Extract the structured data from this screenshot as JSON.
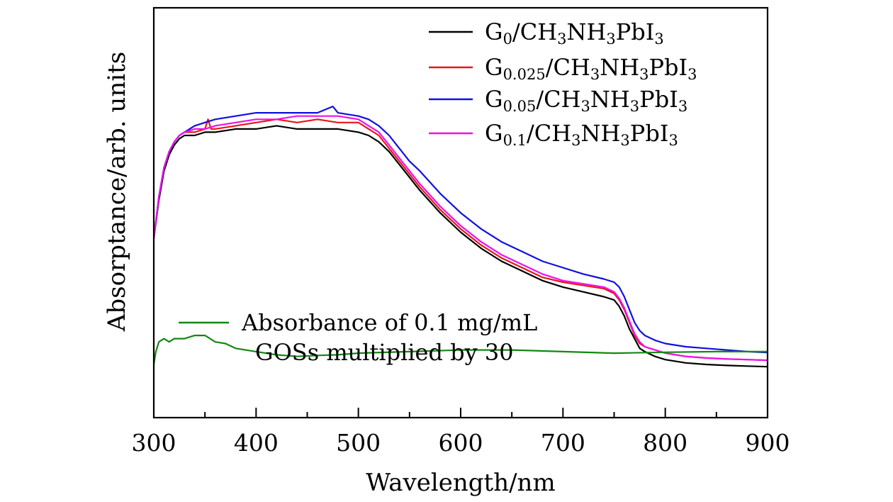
{
  "chart_data": {
    "type": "line",
    "xlabel": "Wavelength/nm",
    "ylabel": "Absorptance/arb. units",
    "xlim": [
      300,
      900
    ],
    "ylim": [
      0,
      1
    ],
    "x_ticks": [
      300,
      400,
      500,
      600,
      700,
      800,
      900
    ],
    "y_ticks_labeled": false,
    "grid": false,
    "legend_position": "top-right",
    "series": [
      {
        "name": "G0/CH3NH3PbI3",
        "label_parts": [
          "G",
          "0",
          "/CH",
          "3",
          "NH",
          "3",
          "PbI",
          "3"
        ],
        "color": "#000000",
        "x": [
          300,
          305,
          310,
          315,
          320,
          325,
          330,
          340,
          350,
          360,
          380,
          400,
          420,
          440,
          460,
          480,
          500,
          510,
          520,
          530,
          540,
          550,
          560,
          580,
          600,
          620,
          640,
          660,
          680,
          700,
          720,
          740,
          750,
          755,
          760,
          765,
          770,
          775,
          780,
          790,
          800,
          820,
          840,
          860,
          880,
          900
        ],
        "y": [
          0.48,
          0.6,
          0.69,
          0.74,
          0.77,
          0.79,
          0.8,
          0.8,
          0.81,
          0.81,
          0.82,
          0.82,
          0.83,
          0.82,
          0.82,
          0.82,
          0.81,
          0.8,
          0.78,
          0.75,
          0.71,
          0.67,
          0.63,
          0.56,
          0.5,
          0.45,
          0.41,
          0.38,
          0.35,
          0.33,
          0.315,
          0.3,
          0.29,
          0.27,
          0.24,
          0.2,
          0.17,
          0.14,
          0.13,
          0.115,
          0.105,
          0.095,
          0.09,
          0.087,
          0.085,
          0.083
        ]
      },
      {
        "name": "G0.025/CH3NH3PbI3",
        "label_parts": [
          "G",
          "0.025",
          "/CH",
          "3",
          "NH",
          "3",
          "PbI",
          "3"
        ],
        "color": "#e8161a",
        "x": [
          300,
          305,
          310,
          315,
          320,
          325,
          330,
          340,
          350,
          353,
          356,
          360,
          380,
          400,
          420,
          440,
          460,
          480,
          500,
          510,
          520,
          530,
          540,
          550,
          560,
          580,
          600,
          620,
          640,
          660,
          680,
          700,
          720,
          740,
          750,
          755,
          760,
          765,
          770,
          775,
          780,
          790,
          800,
          820,
          840,
          860,
          880,
          900
        ],
        "y": [
          0.48,
          0.61,
          0.7,
          0.75,
          0.78,
          0.8,
          0.81,
          0.81,
          0.82,
          0.85,
          0.82,
          0.82,
          0.83,
          0.84,
          0.85,
          0.84,
          0.85,
          0.84,
          0.84,
          0.82,
          0.8,
          0.76,
          0.72,
          0.68,
          0.64,
          0.57,
          0.51,
          0.46,
          0.42,
          0.39,
          0.36,
          0.345,
          0.335,
          0.325,
          0.31,
          0.29,
          0.26,
          0.22,
          0.18,
          0.155,
          0.145,
          0.135,
          0.125,
          0.115,
          0.11,
          0.107,
          0.105,
          0.103
        ]
      },
      {
        "name": "G0.05/CH3NH3PbI3",
        "label_parts": [
          "G",
          "0.05",
          "/CH",
          "3",
          "NH",
          "3",
          "PbI",
          "3"
        ],
        "color": "#1010e0",
        "x": [
          300,
          305,
          310,
          315,
          320,
          325,
          330,
          340,
          350,
          360,
          380,
          400,
          420,
          440,
          460,
          475,
          480,
          500,
          510,
          520,
          530,
          540,
          550,
          560,
          580,
          600,
          620,
          640,
          660,
          680,
          700,
          720,
          740,
          750,
          755,
          760,
          765,
          770,
          775,
          780,
          790,
          800,
          820,
          840,
          860,
          880,
          900
        ],
        "y": [
          0.48,
          0.61,
          0.7,
          0.75,
          0.78,
          0.8,
          0.81,
          0.83,
          0.84,
          0.85,
          0.86,
          0.87,
          0.87,
          0.87,
          0.87,
          0.89,
          0.87,
          0.86,
          0.85,
          0.83,
          0.8,
          0.76,
          0.72,
          0.69,
          0.62,
          0.56,
          0.51,
          0.47,
          0.44,
          0.41,
          0.39,
          0.37,
          0.355,
          0.345,
          0.33,
          0.3,
          0.26,
          0.22,
          0.195,
          0.18,
          0.165,
          0.155,
          0.145,
          0.14,
          0.135,
          0.13,
          0.127
        ]
      },
      {
        "name": "G0.1/CH3NH3PbI3",
        "label_parts": [
          "G",
          "0.1",
          "/CH",
          "3",
          "NH",
          "3",
          "PbI",
          "3"
        ],
        "color": "#ee10ee",
        "x": [
          300,
          305,
          310,
          315,
          320,
          325,
          330,
          340,
          350,
          360,
          380,
          400,
          420,
          440,
          460,
          480,
          500,
          510,
          520,
          530,
          540,
          550,
          560,
          580,
          600,
          620,
          640,
          660,
          680,
          700,
          720,
          740,
          750,
          755,
          760,
          765,
          770,
          775,
          780,
          790,
          800,
          820,
          840,
          860,
          880,
          900
        ],
        "y": [
          0.48,
          0.61,
          0.7,
          0.75,
          0.78,
          0.8,
          0.81,
          0.82,
          0.82,
          0.83,
          0.84,
          0.85,
          0.85,
          0.86,
          0.86,
          0.86,
          0.85,
          0.83,
          0.81,
          0.77,
          0.73,
          0.69,
          0.65,
          0.58,
          0.52,
          0.47,
          0.43,
          0.4,
          0.37,
          0.35,
          0.34,
          0.33,
          0.315,
          0.295,
          0.265,
          0.225,
          0.185,
          0.16,
          0.145,
          0.135,
          0.125,
          0.115,
          0.11,
          0.107,
          0.105,
          0.103
        ]
      },
      {
        "name": "Absorbance of 0.1 mg/mL GOSs multiplied by 30",
        "annotation_lines": [
          "Absorbance of 0.1 mg/mL",
          "GOSs multiplied by 30"
        ],
        "color": "#138813",
        "x": [
          300,
          302,
          305,
          310,
          315,
          320,
          330,
          340,
          350,
          355,
          360,
          370,
          380,
          400,
          420,
          440,
          460,
          480,
          500,
          550,
          600,
          650,
          700,
          750,
          800,
          850,
          900
        ],
        "y": [
          0.09,
          0.13,
          0.16,
          0.17,
          0.16,
          0.17,
          0.17,
          0.18,
          0.18,
          0.17,
          0.16,
          0.155,
          0.14,
          0.13,
          0.12,
          0.115,
          0.118,
          0.12,
          0.125,
          0.13,
          0.135,
          0.135,
          0.13,
          0.125,
          0.128,
          0.13,
          0.13
        ]
      }
    ]
  }
}
